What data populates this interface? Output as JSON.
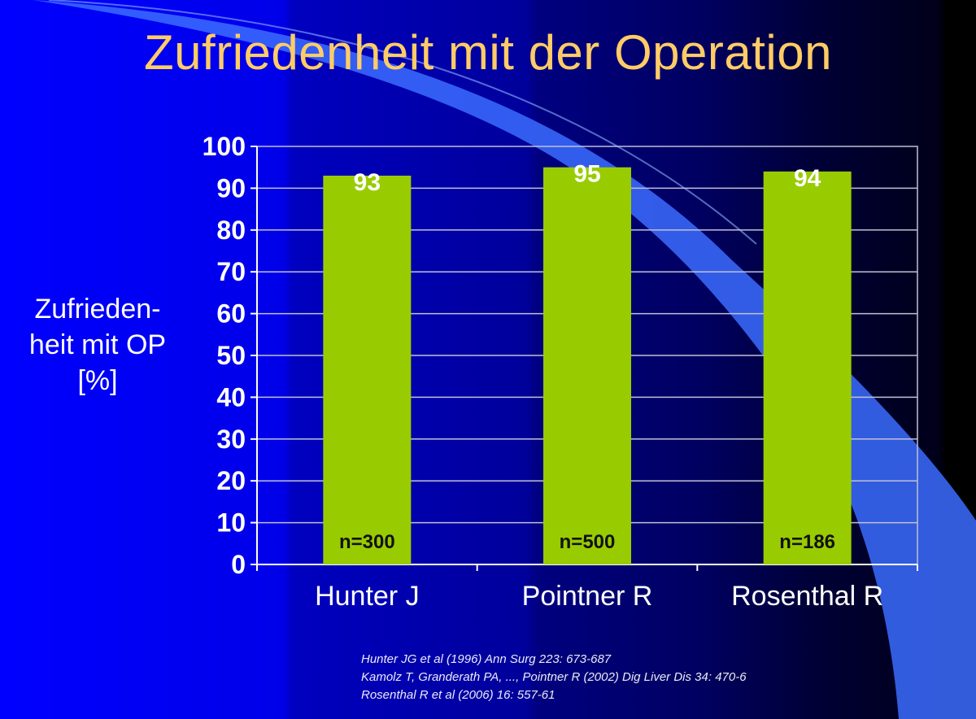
{
  "slide": {
    "title": "Zufriedenheit mit der Operation",
    "ylabel_lines": [
      "Zufrieden-",
      "heit mit OP",
      "[%]"
    ],
    "references": [
      "Hunter JG et al (1996) Ann Surg 223: 673-687",
      "Kamolz T, Granderath PA, ..., Pointner R (2002) Dig Liver Dis 34: 470-6",
      "Rosenthal R et al (2006) 16: 557-61"
    ]
  },
  "colors": {
    "bar": "#99cc00",
    "title": "#ffcc66",
    "text": "#ffffff",
    "grid": "#c0c0d8",
    "inner_label": "#111111"
  },
  "chart_data": {
    "type": "bar",
    "title": "Zufriedenheit mit der Operation",
    "ylabel": "Zufrieden-heit mit OP [%]",
    "xlabel": "",
    "categories": [
      "Hunter J",
      "Pointner R",
      "Rosenthal R"
    ],
    "values": [
      93,
      95,
      94
    ],
    "data_labels": [
      "93",
      "95",
      "94"
    ],
    "n_labels": [
      "n=300",
      "n=500",
      "n=186"
    ],
    "ylim": [
      0,
      100
    ],
    "yticks": [
      0,
      10,
      20,
      30,
      40,
      50,
      60,
      70,
      80,
      90,
      100
    ],
    "grid": true,
    "legend": "none"
  }
}
